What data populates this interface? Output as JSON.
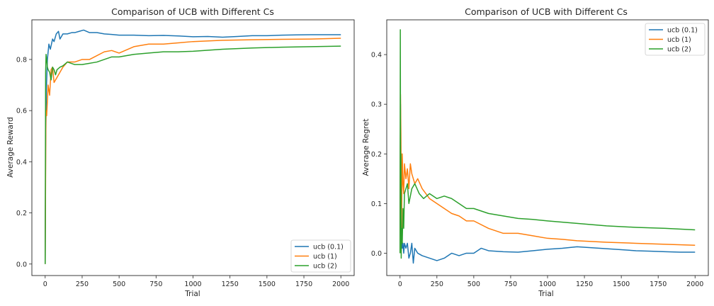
{
  "chart_data": [
    {
      "type": "line",
      "title": "Comparison of UCB with Different Cs",
      "xlabel": "Trial",
      "ylabel": "Average Reward",
      "xlim": [
        -90,
        2090
      ],
      "ylim": [
        -0.045,
        0.955
      ],
      "xticks": [
        0,
        250,
        500,
        750,
        1000,
        1250,
        1500,
        1750,
        2000
      ],
      "yticks": [
        0.0,
        0.2,
        0.4,
        0.6,
        0.8
      ],
      "ytick_labels": [
        "0.0",
        "0.2",
        "0.4",
        "0.6",
        "0.8"
      ],
      "legend_position": "lower-right",
      "series": [
        {
          "name": "ucb (0.1)",
          "color": "#1f77b4",
          "x": [
            0,
            3,
            8,
            15,
            25,
            35,
            50,
            60,
            75,
            90,
            100,
            120,
            150,
            180,
            200,
            230,
            260,
            300,
            350,
            400,
            450,
            500,
            600,
            700,
            800,
            900,
            1000,
            1100,
            1200,
            1300,
            1400,
            1500,
            1600,
            1700,
            1800,
            1900,
            2000
          ],
          "y": [
            0.0,
            0.45,
            0.68,
            0.8,
            0.86,
            0.84,
            0.88,
            0.87,
            0.9,
            0.91,
            0.88,
            0.9,
            0.9,
            0.905,
            0.905,
            0.91,
            0.915,
            0.905,
            0.905,
            0.9,
            0.898,
            0.895,
            0.895,
            0.893,
            0.894,
            0.892,
            0.889,
            0.89,
            0.887,
            0.89,
            0.893,
            0.893,
            0.895,
            0.896,
            0.897,
            0.897,
            0.897
          ]
        },
        {
          "name": "ucb (1)",
          "color": "#ff7f0e",
          "x": [
            0,
            5,
            10,
            20,
            30,
            40,
            50,
            60,
            80,
            100,
            120,
            150,
            200,
            250,
            300,
            400,
            450,
            500,
            600,
            700,
            800,
            900,
            1000,
            1200,
            1400,
            1600,
            1800,
            2000
          ],
          "y": [
            0.0,
            0.6,
            0.58,
            0.7,
            0.66,
            0.76,
            0.77,
            0.71,
            0.73,
            0.75,
            0.77,
            0.79,
            0.79,
            0.8,
            0.8,
            0.83,
            0.835,
            0.825,
            0.85,
            0.86,
            0.86,
            0.865,
            0.87,
            0.875,
            0.877,
            0.879,
            0.88,
            0.883
          ]
        },
        {
          "name": "ucb (2)",
          "color": "#2ca02c",
          "x": [
            0,
            3,
            6,
            10,
            15,
            20,
            30,
            40,
            50,
            60,
            70,
            80,
            100,
            120,
            150,
            200,
            250,
            300,
            350,
            400,
            450,
            500,
            600,
            700,
            800,
            900,
            1000,
            1200,
            1400,
            1600,
            1800,
            2000
          ],
          "y": [
            0.0,
            0.75,
            0.82,
            0.8,
            0.77,
            0.76,
            0.75,
            0.72,
            0.77,
            0.76,
            0.74,
            0.76,
            0.77,
            0.775,
            0.79,
            0.78,
            0.78,
            0.785,
            0.79,
            0.8,
            0.81,
            0.81,
            0.82,
            0.825,
            0.83,
            0.83,
            0.832,
            0.84,
            0.845,
            0.848,
            0.85,
            0.852
          ]
        }
      ]
    },
    {
      "type": "line",
      "title": "Comparison of UCB with Different Cs",
      "xlabel": "Trial",
      "ylabel": "Average Regret",
      "xlim": [
        -90,
        2090
      ],
      "ylim": [
        -0.045,
        0.47
      ],
      "xticks": [
        0,
        250,
        500,
        750,
        1000,
        1250,
        1500,
        1750,
        2000
      ],
      "yticks": [
        0.0,
        0.1,
        0.2,
        0.3,
        0.4
      ],
      "ytick_labels": [
        "0.0",
        "0.1",
        "0.2",
        "0.3",
        "0.4"
      ],
      "legend_position": "upper-right",
      "series": [
        {
          "name": "ucb (0.1)",
          "color": "#1f77b4",
          "x": [
            0,
            3,
            6,
            10,
            15,
            20,
            25,
            30,
            40,
            50,
            60,
            70,
            80,
            90,
            100,
            120,
            150,
            200,
            250,
            300,
            350,
            400,
            450,
            500,
            550,
            600,
            700,
            800,
            900,
            1000,
            1100,
            1200,
            1300,
            1400,
            1500,
            1600,
            1700,
            1800,
            1900,
            2000
          ],
          "y": [
            0.0,
            0.3,
            0.1,
            0.03,
            0.01,
            0.02,
            0.0,
            0.02,
            0.01,
            0.02,
            -0.01,
            0.0,
            0.02,
            -0.02,
            0.01,
            0.0,
            -0.005,
            -0.01,
            -0.015,
            -0.01,
            0.0,
            -0.005,
            0.0,
            0.0,
            0.01,
            0.005,
            0.003,
            0.002,
            0.005,
            0.008,
            0.01,
            0.013,
            0.011,
            0.009,
            0.007,
            0.005,
            0.004,
            0.003,
            0.002,
            0.002
          ]
        },
        {
          "name": "ucb (1)",
          "color": "#ff7f0e",
          "x": [
            0,
            3,
            6,
            10,
            15,
            20,
            25,
            30,
            40,
            50,
            60,
            70,
            80,
            90,
            100,
            120,
            150,
            200,
            250,
            300,
            350,
            400,
            450,
            500,
            600,
            700,
            800,
            900,
            1000,
            1100,
            1200,
            1400,
            1600,
            1800,
            2000
          ],
          "y": [
            0.0,
            0.32,
            0.24,
            0.05,
            0.2,
            0.14,
            0.12,
            0.18,
            0.15,
            0.17,
            0.13,
            0.18,
            0.16,
            0.15,
            0.14,
            0.15,
            0.13,
            0.11,
            0.1,
            0.09,
            0.08,
            0.075,
            0.065,
            0.065,
            0.05,
            0.04,
            0.04,
            0.035,
            0.03,
            0.028,
            0.025,
            0.022,
            0.02,
            0.018,
            0.016
          ]
        },
        {
          "name": "ucb (2)",
          "color": "#2ca02c",
          "x": [
            0,
            2,
            4,
            6,
            8,
            10,
            15,
            20,
            25,
            30,
            40,
            50,
            60,
            80,
            100,
            130,
            160,
            200,
            250,
            300,
            350,
            400,
            450,
            500,
            600,
            700,
            800,
            900,
            1000,
            1200,
            1400,
            1600,
            1800,
            2000
          ],
          "y": [
            0.0,
            0.45,
            0.1,
            0.2,
            -0.01,
            0.05,
            0.02,
            0.09,
            0.05,
            0.12,
            0.13,
            0.14,
            0.1,
            0.13,
            0.14,
            0.12,
            0.11,
            0.12,
            0.11,
            0.115,
            0.11,
            0.1,
            0.09,
            0.09,
            0.08,
            0.075,
            0.07,
            0.068,
            0.065,
            0.06,
            0.055,
            0.052,
            0.05,
            0.047
          ]
        }
      ]
    }
  ]
}
